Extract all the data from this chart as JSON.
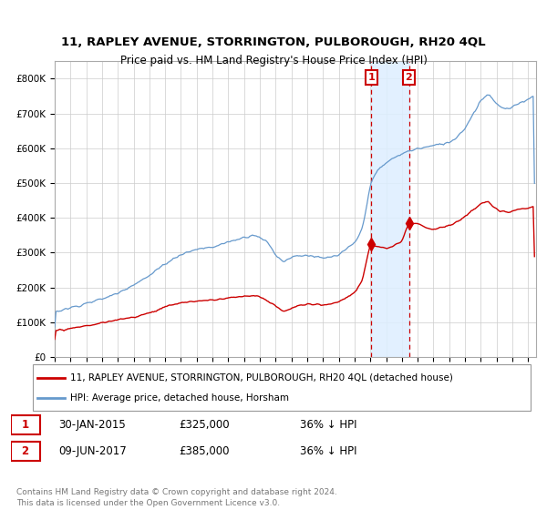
{
  "title": "11, RAPLEY AVENUE, STORRINGTON, PULBOROUGH, RH20 4QL",
  "subtitle": "Price paid vs. HM Land Registry's House Price Index (HPI)",
  "legend_line1": "11, RAPLEY AVENUE, STORRINGTON, PULBOROUGH, RH20 4QL (detached house)",
  "legend_line2": "HPI: Average price, detached house, Horsham",
  "sale1_label": "1",
  "sale1_date": "30-JAN-2015",
  "sale1_price_str": "£325,000",
  "sale1_price": 325000,
  "sale1_year": 2015.08,
  "sale1_hpi": "36% ↓ HPI",
  "sale2_label": "2",
  "sale2_date": "09-JUN-2017",
  "sale2_price_str": "£385,000",
  "sale2_price": 385000,
  "sale2_year": 2017.44,
  "sale2_hpi": "36% ↓ HPI",
  "footnote": "Contains HM Land Registry data © Crown copyright and database right 2024.\nThis data is licensed under the Open Government Licence v3.0.",
  "red_color": "#cc0000",
  "blue_color": "#6699cc",
  "shade_color": "#ddeeff",
  "ylim_min": 0,
  "ylim_max": 850000,
  "ytick_vals": [
    0,
    100000,
    200000,
    300000,
    400000,
    500000,
    600000,
    700000,
    800000
  ],
  "ytick_labels": [
    "£0",
    "£100K",
    "£200K",
    "£300K",
    "£400K",
    "£500K",
    "£600K",
    "£700K",
    "£800K"
  ],
  "xmin": 1995,
  "xmax": 2025.5,
  "xtick_years": [
    1995,
    1996,
    1997,
    1998,
    1999,
    2000,
    2001,
    2002,
    2003,
    2004,
    2005,
    2006,
    2007,
    2008,
    2009,
    2010,
    2011,
    2012,
    2013,
    2014,
    2015,
    2016,
    2017,
    2018,
    2019,
    2020,
    2021,
    2022,
    2023,
    2024,
    2025
  ]
}
